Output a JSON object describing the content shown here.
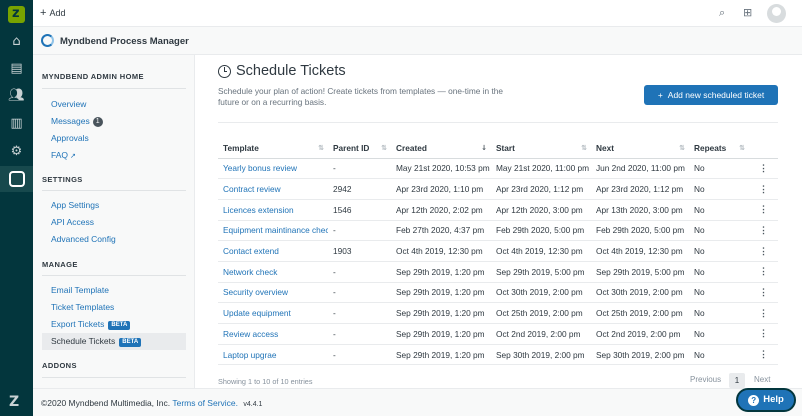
{
  "topbar": {
    "add_label": "Add"
  },
  "app": {
    "title": "Myndbend Process Manager"
  },
  "sidebar": {
    "sections": [
      {
        "title": "MYNDBEND ADMIN HOME"
      },
      {
        "title": "SETTINGS"
      },
      {
        "title": "MANAGE"
      },
      {
        "title": "ADDONS"
      }
    ],
    "items": [
      {
        "label": "Overview"
      },
      {
        "label": "Messages",
        "badge": "1"
      },
      {
        "label": "Approvals"
      },
      {
        "label": "FAQ"
      },
      {
        "label": "App Settings"
      },
      {
        "label": "API Access"
      },
      {
        "label": "Advanced Config"
      },
      {
        "label": "Email Template"
      },
      {
        "label": "Ticket Templates"
      },
      {
        "label": "Export Tickets",
        "badge": "BETA"
      },
      {
        "label": "Schedule Tickets",
        "badge": "BETA"
      }
    ]
  },
  "main": {
    "title": "Schedule Tickets",
    "description": "Schedule your plan of action! Create tickets from templates — one-time in the future or on a recurring basis.",
    "add_button": "Add new scheduled ticket",
    "columns": [
      "Template",
      "Parent ID",
      "Created",
      "Start",
      "Next",
      "Repeats"
    ],
    "rows": [
      [
        "Yearly bonus review",
        "-",
        "May 21st 2020, 10:53 pm",
        "May 21st 2020, 11:00 pm",
        "Jun 2nd 2020, 11:00 pm",
        "No"
      ],
      [
        "Contract review",
        "2942",
        "Apr 23rd 2020, 1:10 pm",
        "Apr 23rd 2020, 1:12 pm",
        "Apr 23rd 2020, 1:12 pm",
        "No"
      ],
      [
        "Licences extension",
        "1546",
        "Apr 12th 2020, 2:02 pm",
        "Apr 12th 2020, 3:00 pm",
        "Apr 13th 2020, 3:00 pm",
        "No"
      ],
      [
        "Equipment maintinance check",
        "-",
        "Feb 27th 2020, 4:37 pm",
        "Feb 29th 2020, 5:00 pm",
        "Feb 29th 2020, 5:00 pm",
        "No"
      ],
      [
        "Contact extend",
        "1903",
        "Oct 4th 2019, 12:30 pm",
        "Oct 4th 2019, 12:30 pm",
        "Oct 4th 2019, 12:30 pm",
        "No"
      ],
      [
        "Network check",
        "-",
        "Sep 29th 2019, 1:20 pm",
        "Sep 29th 2019, 5:00 pm",
        "Sep 29th 2019, 5:00 pm",
        "No"
      ],
      [
        "Security overview",
        "-",
        "Sep 29th 2019, 1:20 pm",
        "Oct 30th 2019, 2:00 pm",
        "Oct 30th 2019, 2:00 pm",
        "No"
      ],
      [
        "Update equipment",
        "-",
        "Sep 29th 2019, 1:20 pm",
        "Oct 25th 2019, 2:00 pm",
        "Oct 25th 2019, 2:00 pm",
        "No"
      ],
      [
        "Review access",
        "-",
        "Sep 29th 2019, 1:20 pm",
        "Oct 2nd 2019, 2:00 pm",
        "Oct 2nd 2019, 2:00 pm",
        "No"
      ],
      [
        "Laptop upgrae",
        "-",
        "Sep 29th 2019, 1:20 pm",
        "Sep 30th 2019, 2:00 pm",
        "Sep 30th 2019, 2:00 pm",
        "No"
      ]
    ],
    "showing": "Showing 1 to 10 of 10 entries",
    "pager": {
      "previous": "Previous",
      "page": "1",
      "next": "Next"
    }
  },
  "footer": {
    "copyright": "©2020 Myndbend Multimedia, Inc.",
    "terms": "Terms of Service.",
    "version": "v4.4.1"
  },
  "help_label": "Help",
  "colors": {
    "rail": "#03363d",
    "accent": "#1f73b7",
    "brand": "#78a300"
  }
}
